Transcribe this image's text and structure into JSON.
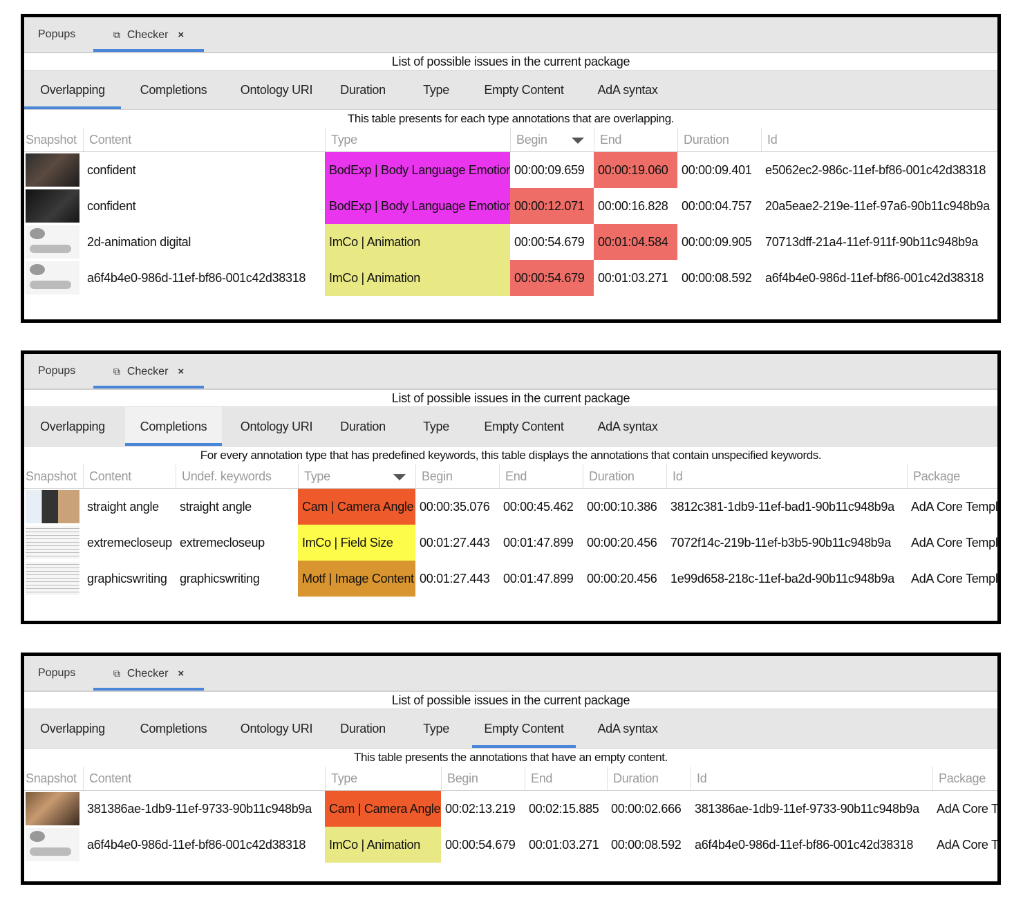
{
  "window_tabs": {
    "popups": "Popups",
    "checker": "Checker",
    "close": "×",
    "external": "⧉"
  },
  "title": "List of possible issues in the current package",
  "subtabs": [
    "Overlapping",
    "Completions",
    "Ontology URI",
    "Duration",
    "Type",
    "Empty Content",
    "AdA syntax"
  ],
  "panels": [
    {
      "active_tab": "Overlapping",
      "description": "This table presents for each type annotations that are overlapping.",
      "headers": [
        "Snapshot",
        "Content",
        "Type",
        "Begin",
        "End",
        "Duration",
        "Id"
      ],
      "sorted_column": "Begin",
      "rows": [
        {
          "content": "confident",
          "type": "BodExp | Body Language Emotion",
          "type_color": "#e935ee",
          "begin": "00:00:09.659",
          "end": "00:00:19.060",
          "duration": "00:00:09.401",
          "id": "e5062ec2-986c-11ef-bf86-001c42d38318",
          "highlight": [
            "end"
          ]
        },
        {
          "content": "confident",
          "type": "BodExp | Body Language Emotion",
          "type_color": "#e935ee",
          "begin": "00:00:12.071",
          "end": "00:00:16.828",
          "duration": "00:00:04.757",
          "id": "20a5eae2-219e-11ef-97a6-90b11c948b9a",
          "highlight": [
            "begin"
          ]
        },
        {
          "content": "2d-animation digital",
          "type": "ImCo | Animation",
          "type_color": "#e8e885",
          "begin": "00:00:54.679",
          "end": "00:01:04.584",
          "duration": "00:00:09.905",
          "id": "70713dff-21a4-11ef-911f-90b11c948b9a",
          "highlight": [
            "end"
          ]
        },
        {
          "content": "a6f4b4e0-986d-11ef-bf86-001c42d38318",
          "type": "ImCo | Animation",
          "type_color": "#e8e885",
          "begin": "00:00:54.679",
          "end": "00:01:03.271",
          "duration": "00:00:08.592",
          "id": "a6f4b4e0-986d-11ef-bf86-001c42d38318",
          "highlight": [
            "begin"
          ]
        }
      ]
    },
    {
      "active_tab": "Completions",
      "description": "For every annotation type that has predefined keywords, this table displays the annotations that contain unspecified keywords.",
      "headers": [
        "Snapshot",
        "Content",
        "Undef. keywords",
        "Type",
        "Begin",
        "End",
        "Duration",
        "Id",
        "Package"
      ],
      "sorted_column": "Type",
      "rows": [
        {
          "content": "straight angle",
          "undef": "straight angle",
          "type": "Cam | Camera Angle",
          "type_color": "#ef5a2a",
          "begin": "00:00:35.076",
          "end": "00:00:45.462",
          "duration": "00:00:10.386",
          "id": "3812c381-1db9-11ef-bad1-90b11c948b9a",
          "package": "AdA Core Templa"
        },
        {
          "content": "extremecloseup",
          "undef": "extremecloseup",
          "type": "ImCo | Field Size",
          "type_color": "#fdfc4a",
          "begin": "00:01:27.443",
          "end": "00:01:47.899",
          "duration": "00:00:20.456",
          "id": "7072f14c-219b-11ef-b3b5-90b11c948b9a",
          "package": "AdA Core Templa"
        },
        {
          "content": "graphicswriting",
          "undef": "graphicswriting",
          "type": "Motf | Image Content",
          "type_color": "#d9952f",
          "begin": "00:01:27.443",
          "end": "00:01:47.899",
          "duration": "00:00:20.456",
          "id": "1e99d658-218c-11ef-ba2d-90b11c948b9a",
          "package": "AdA Core Templa"
        }
      ]
    },
    {
      "active_tab": "Empty Content",
      "description": "This table presents the annotations that have an empty content.",
      "headers": [
        "Snapshot",
        "Content",
        "Type",
        "Begin",
        "End",
        "Duration",
        "Id",
        "Package"
      ],
      "sorted_column": "",
      "rows": [
        {
          "content": "381386ae-1db9-11ef-9733-90b11c948b9a",
          "type": "Cam | Camera Angle",
          "type_color": "#ef5a2a",
          "begin": "00:02:13.219",
          "end": "00:02:15.885",
          "duration": "00:00:02.666",
          "id": "381386ae-1db9-11ef-9733-90b11c948b9a",
          "package": "AdA Core Te"
        },
        {
          "content": "a6f4b4e0-986d-11ef-bf86-001c42d38318",
          "type": "ImCo | Animation",
          "type_color": "#e8e885",
          "begin": "00:00:54.679",
          "end": "00:01:03.271",
          "duration": "00:00:08.592",
          "id": "a6f4b4e0-986d-11ef-bf86-001c42d38318",
          "package": "AdA Core Te"
        }
      ]
    }
  ]
}
